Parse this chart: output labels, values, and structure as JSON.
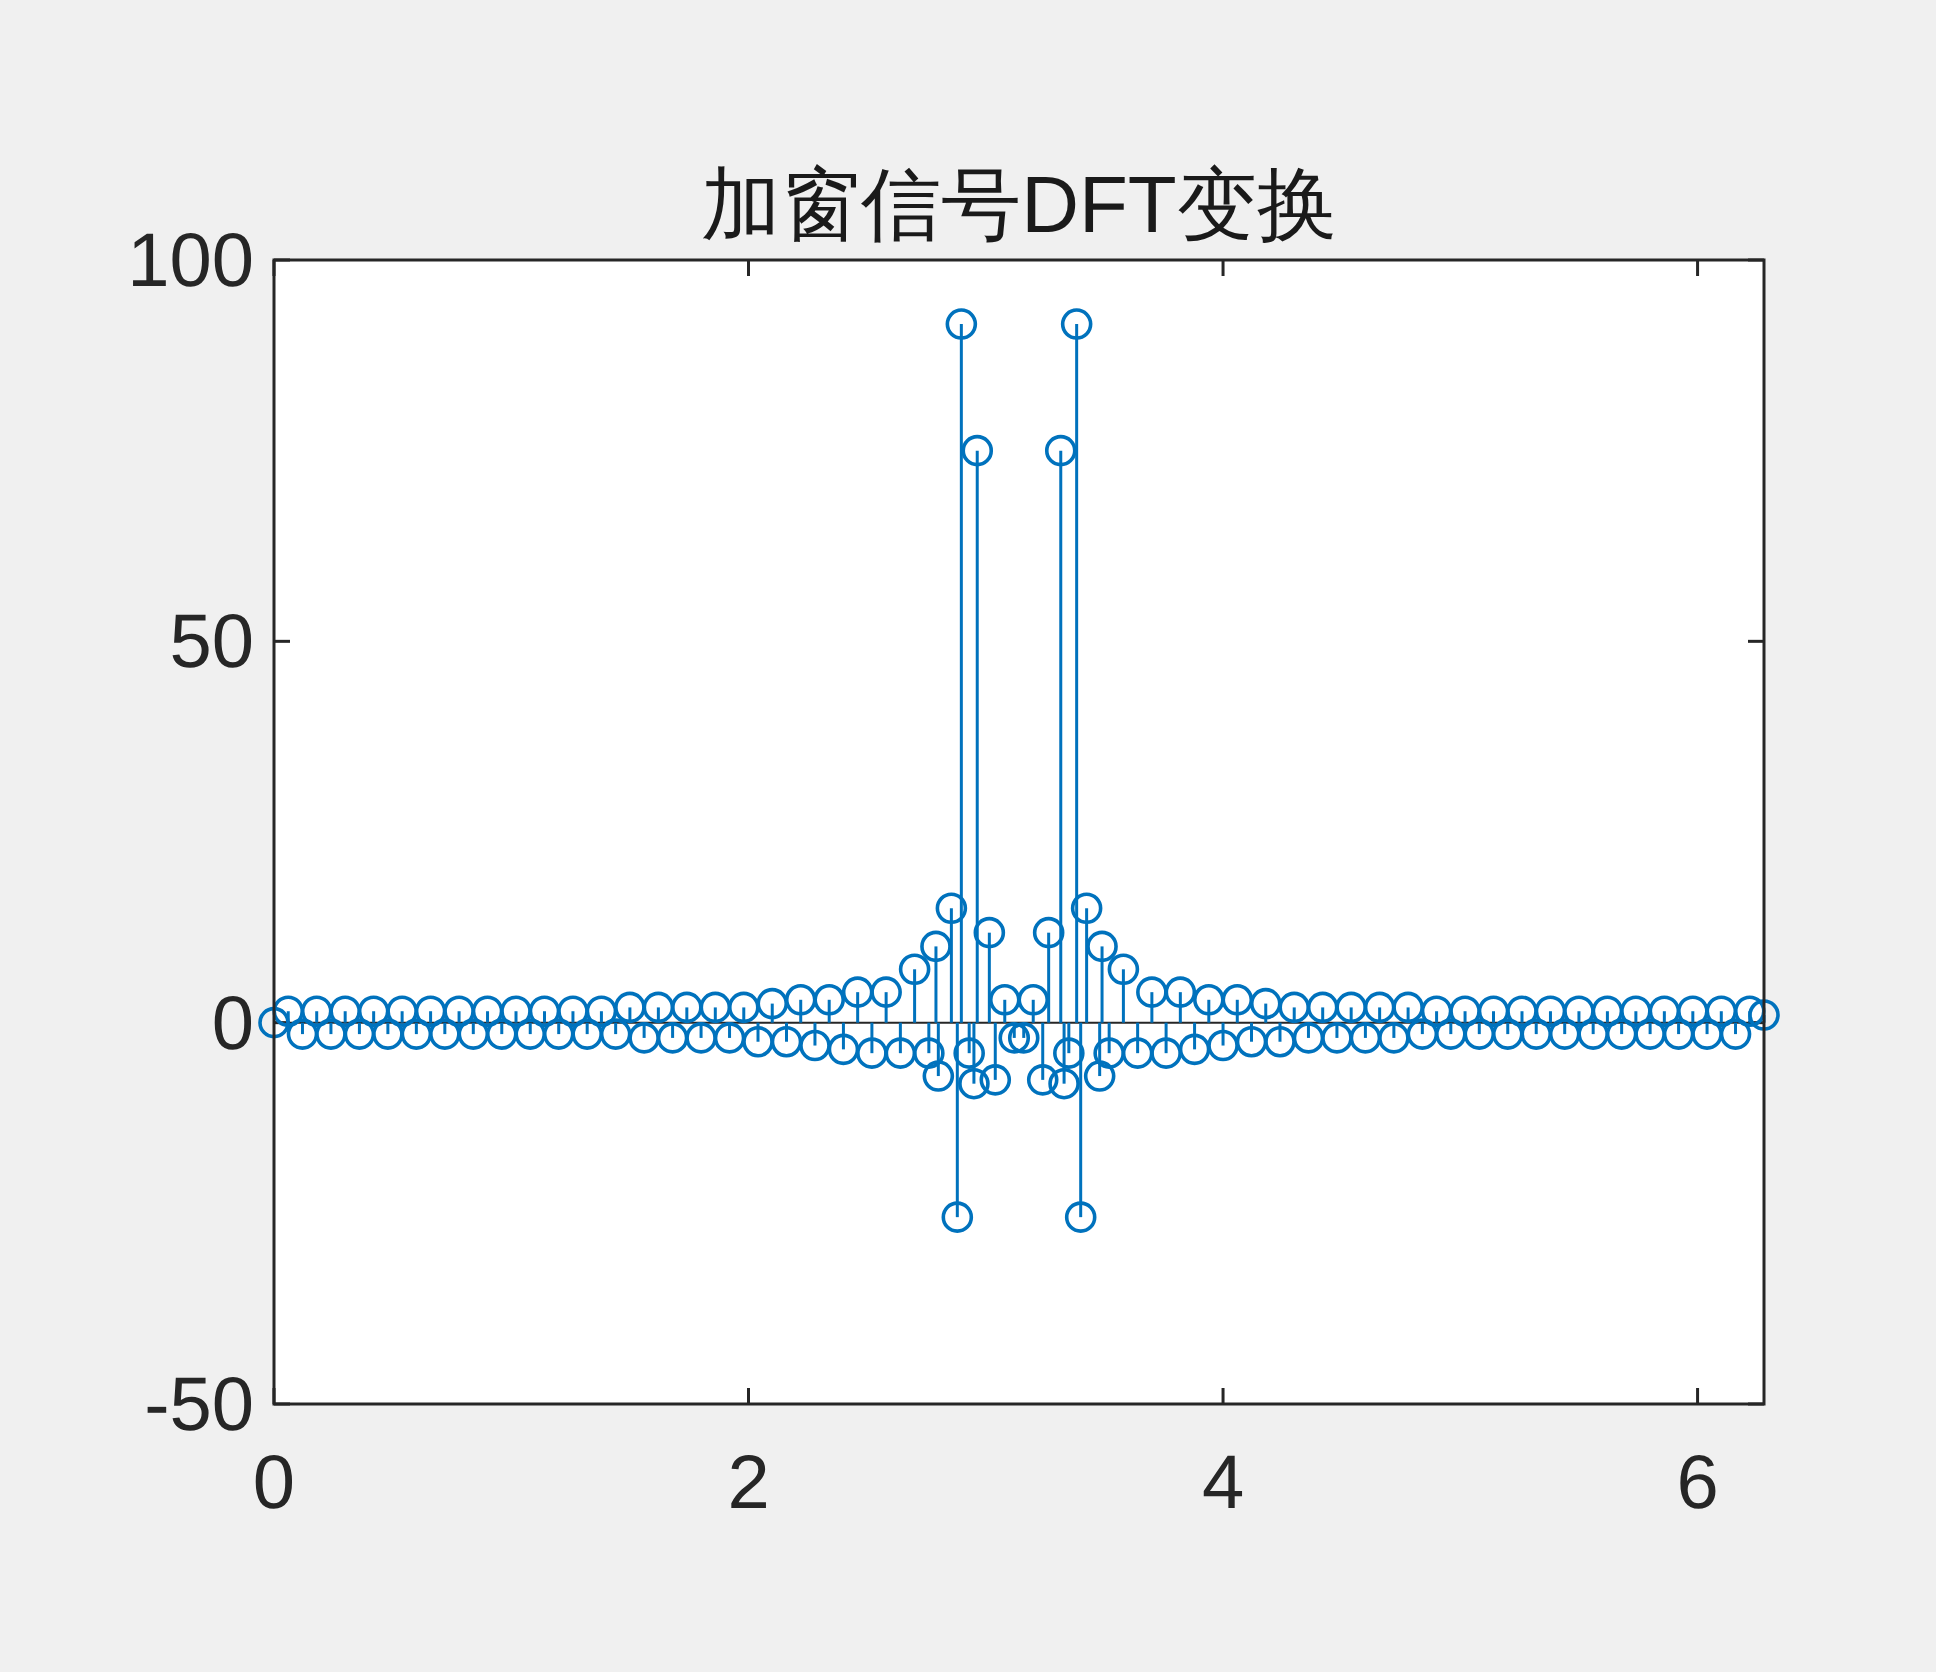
{
  "chart_data": {
    "type": "lollipop",
    "title": "加窗信号DFT变换",
    "color": "#0072bd",
    "marker": "circle",
    "grid": false,
    "ref_lines": [
      {
        "axis": "y",
        "value": 0,
        "color": "#262626"
      }
    ],
    "xlim": [
      0,
      6.28
    ],
    "ylim": [
      -50,
      100
    ],
    "xticks": [
      0,
      2,
      4,
      6
    ],
    "yticks": [
      -50,
      0,
      50,
      100
    ],
    "x": [
      0,
      0.06,
      0.12,
      0.18,
      0.24,
      0.3,
      0.36,
      0.42,
      0.48,
      0.54,
      0.6,
      0.66,
      0.72,
      0.78,
      0.84,
      0.9,
      0.96,
      1.02,
      1.08,
      1.14,
      1.2,
      1.26,
      1.32,
      1.38,
      1.44,
      1.5,
      1.56,
      1.62,
      1.68,
      1.74,
      1.8,
      1.86,
      1.92,
      1.98,
      2.04,
      2.1,
      2.16,
      2.22,
      2.28,
      2.34,
      2.4,
      2.46,
      2.52,
      2.58,
      2.64,
      2.7,
      2.76,
      2.79,
      2.8,
      2.855,
      2.88,
      2.897,
      2.93,
      2.95,
      2.964,
      3.015,
      3.04,
      3.08,
      3.12,
      3.16,
      3.2,
      3.24,
      3.265,
      3.316,
      3.33,
      3.35,
      3.383,
      3.4,
      3.425,
      3.48,
      3.49,
      3.52,
      3.58,
      3.64,
      3.7,
      3.76,
      3.82,
      3.88,
      3.94,
      4.0,
      4.06,
      4.12,
      4.18,
      4.24,
      4.3,
      4.36,
      4.42,
      4.48,
      4.54,
      4.6,
      4.66,
      4.72,
      4.78,
      4.84,
      4.9,
      4.96,
      5.02,
      5.08,
      5.14,
      5.2,
      5.26,
      5.32,
      5.38,
      5.44,
      5.5,
      5.56,
      5.62,
      5.68,
      5.74,
      5.8,
      5.86,
      5.92,
      5.98,
      6.04,
      6.1,
      6.16,
      6.22,
      6.28
    ],
    "values": [
      0,
      1.5,
      -1.5,
      1.5,
      -1.5,
      1.5,
      -1.5,
      1.5,
      -1.5,
      1.5,
      -1.5,
      1.5,
      -1.5,
      1.5,
      -1.5,
      1.5,
      -1.5,
      1.5,
      -1.5,
      1.5,
      -1.5,
      1.5,
      -1.5,
      1.5,
      -1.5,
      2,
      -2,
      2,
      -2,
      2,
      -2,
      2,
      -2,
      2,
      -2.5,
      2.5,
      -2.5,
      3,
      -3,
      3,
      -3.5,
      4,
      -4,
      4,
      -4,
      7,
      -4,
      10,
      -7,
      15,
      -25.5,
      91.6,
      -4,
      -8,
      75,
      11.8,
      -7.5,
      3,
      -2,
      -2,
      3,
      -7.5,
      11.8,
      75,
      -8,
      -4,
      91.6,
      -25.5,
      15,
      -7,
      10,
      -4,
      7,
      -4,
      4,
      -4,
      4,
      -3.5,
      3,
      -3,
      3,
      -2.5,
      2.5,
      -2.5,
      2,
      -2,
      2,
      -2,
      2,
      -2,
      2,
      -2,
      2,
      -1.5,
      1.5,
      -1.5,
      1.5,
      -1.5,
      1.5,
      -1.5,
      1.5,
      -1.5,
      1.5,
      -1.5,
      1.5,
      -1.5,
      1.5,
      -1.5,
      1.5,
      -1.5,
      1.5,
      -1.5,
      1.5,
      -1.5,
      1.5,
      -1.5,
      1.5,
      1
    ]
  }
}
